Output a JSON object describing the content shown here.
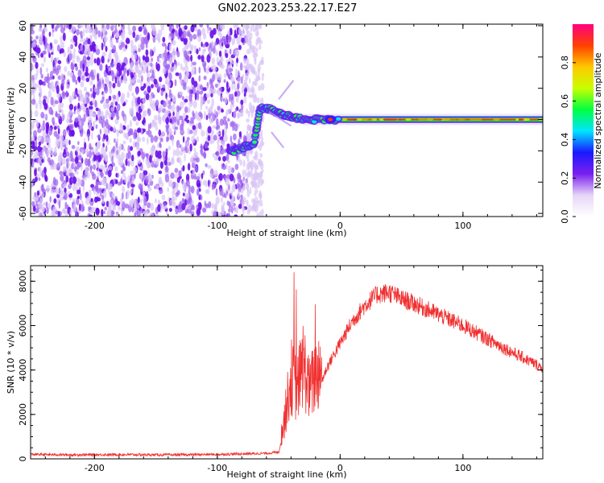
{
  "title": "GN02.2023.253.22.17.E27",
  "chart_data": [
    {
      "type": "heatmap",
      "xlabel": "Height of straight line (km)",
      "ylabel": "Frequency (Hz)",
      "xlim": [
        -252,
        165
      ],
      "ylim": [
        -62,
        61
      ],
      "x_ticks": [
        -200,
        -100,
        0,
        100
      ],
      "y_ticks": [
        -60,
        -40,
        -20,
        0,
        20,
        40,
        60
      ],
      "colorbar": {
        "label": "Normalized spectral amplitude",
        "range": [
          0.0,
          1.0
        ],
        "ticks": [
          0.0,
          0.2,
          0.4,
          0.6,
          0.8
        ],
        "colors": [
          "#ffffff",
          "#e6d5f7",
          "#7a1ff0",
          "#1a1aff",
          "#00e5ff",
          "#00ff40",
          "#c8ff00",
          "#ffc800",
          "#ff4000",
          "#ff0080"
        ]
      },
      "features": {
        "noise_region_x": [
          -252,
          -68
        ],
        "signal_trace": [
          {
            "x": -90,
            "y": -21
          },
          {
            "x": -80,
            "y": -18
          },
          {
            "x": -70,
            "y": -15
          },
          {
            "x": -65,
            "y": 8
          },
          {
            "x": -55,
            "y": 6
          },
          {
            "x": -45,
            "y": 3
          },
          {
            "x": -35,
            "y": 1
          },
          {
            "x": -20,
            "y": 0
          },
          {
            "x": 0,
            "y": 0
          },
          {
            "x": 50,
            "y": 0
          },
          {
            "x": 100,
            "y": 0
          },
          {
            "x": 165,
            "y": 0
          }
        ]
      }
    },
    {
      "type": "line",
      "xlabel": "Height of straight line (km)",
      "ylabel": "SNR (10 * v/v)",
      "xlim": [
        -252,
        165
      ],
      "ylim": [
        0,
        8700
      ],
      "x_ticks": [
        -200,
        -100,
        0,
        100
      ],
      "y_ticks": [
        0,
        2000,
        4000,
        6000,
        8000
      ],
      "line_color": "#f03030",
      "series": [
        {
          "x": [
            -252,
            -220,
            -180,
            -140,
            -100,
            -60,
            -50,
            -45,
            -40,
            -35,
            -30,
            -25,
            -20,
            -15,
            -10,
            0,
            10,
            20,
            30,
            40,
            50,
            60,
            80,
            100,
            120,
            140,
            165
          ],
          "values": [
            200,
            180,
            190,
            180,
            200,
            250,
            300,
            1500,
            3000,
            2500,
            3500,
            2500,
            3000,
            3500,
            4200,
            5200,
            6200,
            6900,
            7400,
            7500,
            7200,
            7000,
            6500,
            6000,
            5400,
            4800,
            4100
          ]
        }
      ]
    }
  ]
}
